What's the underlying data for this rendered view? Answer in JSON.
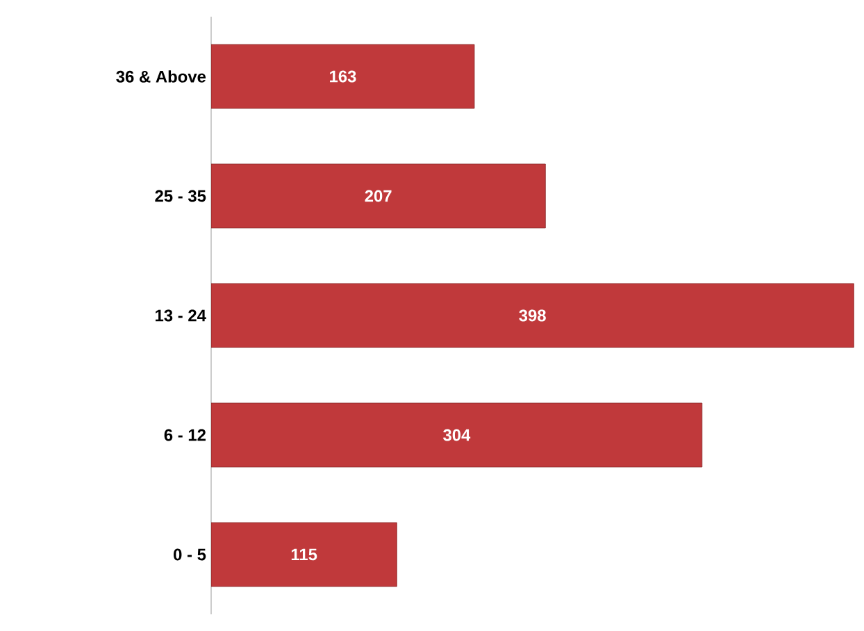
{
  "chart_data": {
    "type": "bar",
    "orientation": "horizontal",
    "categories": [
      "36 & Above",
      "25 - 35",
      "13 - 24",
      "6 - 12",
      "0 - 5"
    ],
    "values": [
      163,
      207,
      398,
      304,
      115
    ],
    "color": "#c0393b",
    "data_labels": true
  }
}
